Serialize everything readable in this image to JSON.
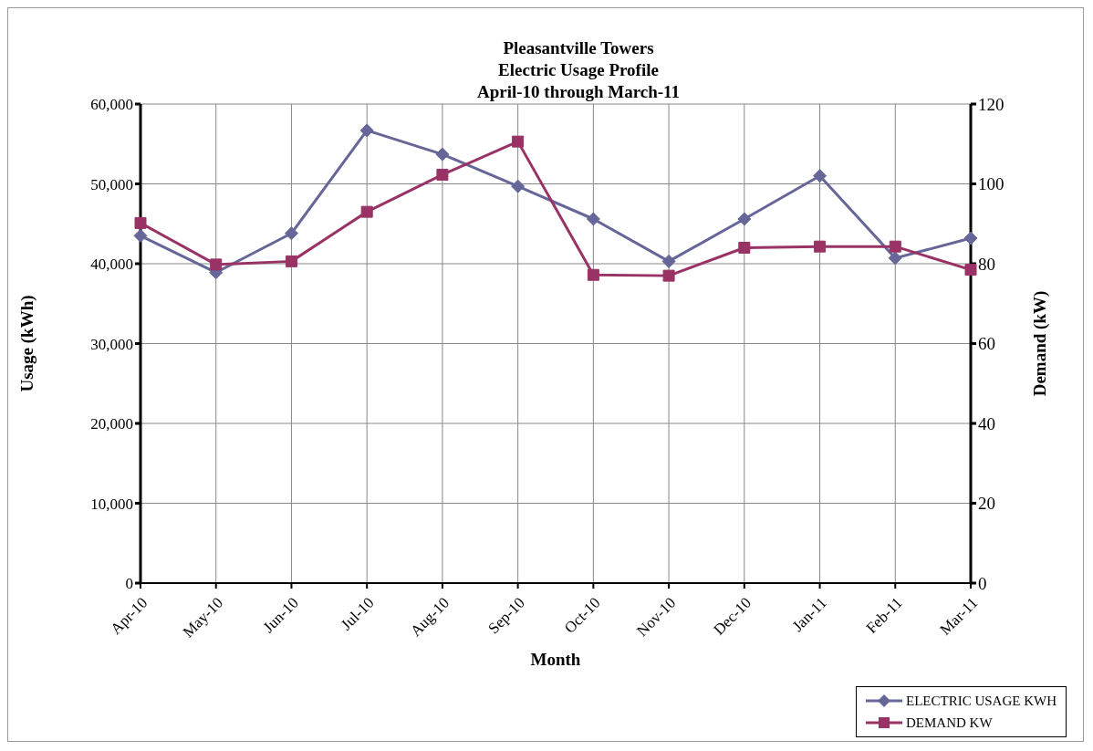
{
  "chart_data": {
    "type": "line",
    "title": "Pleasantville Towers\nElectric Usage Profile\nApril-10 through March-11",
    "xlabel": "Month",
    "ylabel": "Usage (kWh)",
    "y2label": "Demand (kW)",
    "categories": [
      "Apr-10",
      "May-10",
      "Jun-10",
      "Jul-10",
      "Aug-10",
      "Sep-10",
      "Oct-10",
      "Nov-10",
      "Dec-10",
      "Jan-11",
      "Feb-11",
      "Mar-11"
    ],
    "series": [
      {
        "name": "ELECTRIC USAGE KWH",
        "color": "#666699",
        "marker": "diamond",
        "values": [
          43500,
          38900,
          43800,
          56700,
          53700,
          49700,
          45600,
          40300,
          45600,
          51000,
          40700,
          43200
        ]
      },
      {
        "name": "DEMAND KW",
        "color": "#993366",
        "marker": "square",
        "axis": "y2",
        "values": [
          90.2,
          79.8,
          80.6,
          93.0,
          102.3,
          110.6,
          77.2,
          77.0,
          84.0,
          84.3,
          84.3,
          78.5
        ]
      }
    ],
    "ylim": [
      0,
      60000
    ],
    "yticks": [
      0,
      {
        "value": 10000,
        "label": "10,000"
      },
      {
        "value": 20000,
        "label": "20,000"
      },
      {
        "value": 30000,
        "label": "30,000"
      },
      {
        "value": 40000,
        "label": "40,000"
      },
      {
        "value": 50000,
        "label": "50,000"
      },
      {
        "value": 60000,
        "label": "60,000"
      }
    ],
    "y2lim": [
      0,
      120
    ],
    "y2ticks": [
      0,
      20,
      40,
      60,
      80,
      100,
      120
    ],
    "grid": true,
    "legend": "bottom right",
    "line_style": "solid"
  }
}
